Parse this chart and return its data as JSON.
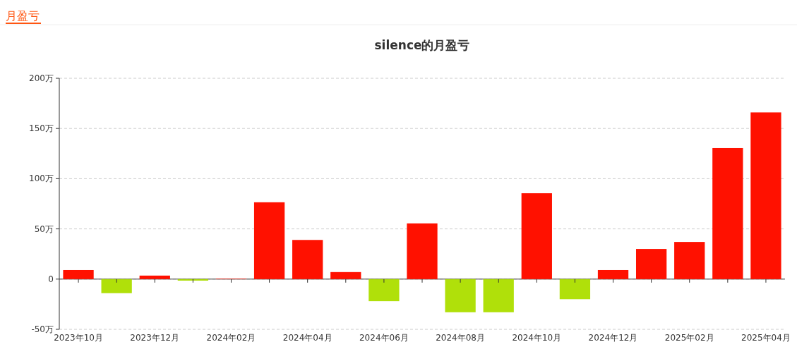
{
  "chart_data": {
    "type": "bar",
    "title": "silence的月盈亏",
    "annotations": [
      "月盈亏"
    ],
    "categories": [
      "2023年10月",
      null,
      "2023年12月",
      null,
      "2024年02月",
      null,
      "2024年04月",
      null,
      "2024年06月",
      null,
      "2024年08月",
      null,
      "2024年10月",
      null,
      "2024年12月",
      null,
      "2025年02月",
      null,
      "2025年04月"
    ],
    "values": [
      9,
      -14,
      3.5,
      -1.5,
      0.5,
      76.5,
      39,
      7,
      -22,
      55.5,
      -33,
      -33,
      85.5,
      -20,
      9,
      30,
      37,
      130.5,
      166
    ],
    "colors": [
      "#ff1100",
      "#b0e00a",
      "#ff1100",
      "#b0e00a",
      "#ff1100",
      "#ff1100",
      "#ff1100",
      "#ff1100",
      "#b0e00a",
      "#ff1100",
      "#b0e00a",
      "#b0e00a",
      "#ff1100",
      "#b0e00a",
      "#ff1100",
      "#ff1100",
      "#ff1100",
      "#ff1100",
      "#ff1100"
    ],
    "ylim": [
      -50,
      200
    ],
    "yticks": [
      {
        "value": -50,
        "label": "-50万"
      },
      {
        "value": 0,
        "label": "0"
      },
      {
        "value": 50,
        "label": "50万"
      },
      {
        "value": 100,
        "label": "100万"
      },
      {
        "value": 150,
        "label": "150万"
      },
      {
        "value": 200,
        "label": "200万"
      }
    ],
    "grid": "y"
  }
}
